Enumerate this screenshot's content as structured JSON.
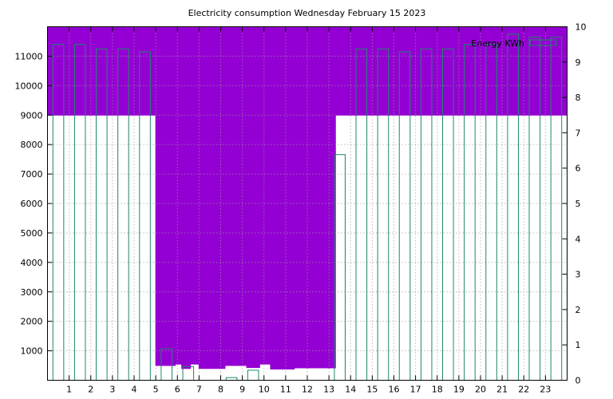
{
  "chart_data": {
    "type": "bar",
    "title": "Electricity consumption Wednesday February 15 2023",
    "xlabel": "",
    "ylabel": "",
    "xlim": [
      0,
      24
    ],
    "x_ticks": [
      1,
      2,
      3,
      4,
      5,
      6,
      7,
      8,
      9,
      10,
      11,
      12,
      13,
      14,
      15,
      16,
      17,
      18,
      19,
      20,
      21,
      22,
      23
    ],
    "y_left": {
      "lim": [
        0,
        12000
      ],
      "ticks": [
        1000,
        2000,
        3000,
        4000,
        5000,
        6000,
        7000,
        8000,
        9000,
        10000,
        11000
      ]
    },
    "y_right": {
      "lim": [
        0,
        10
      ],
      "ticks": [
        0,
        1,
        2,
        3,
        4,
        5,
        6,
        7,
        8,
        9,
        10
      ]
    },
    "grid": true,
    "legend_position": "top-right",
    "colors": {
      "bars": "#1a8a6a",
      "step_line": "#9400d3",
      "fill": "#9400d3"
    },
    "series": [
      {
        "name": "Energy KWh",
        "axis": "left",
        "style": "boxes",
        "hours": [
          0,
          1,
          2,
          3,
          4,
          5,
          6,
          7,
          8,
          9,
          10,
          11,
          12,
          13,
          14,
          15,
          16,
          17,
          18,
          19,
          20,
          21,
          22,
          23
        ],
        "values": [
          11400,
          11400,
          11250,
          11250,
          11150,
          1070,
          460,
          0,
          90,
          340,
          0,
          0,
          0,
          7660,
          11250,
          11250,
          11150,
          11250,
          11250,
          11400,
          11400,
          11750,
          11650,
          11650
        ]
      },
      {
        "axis": "left",
        "style": "step-fill",
        "steps": [
          [
            0,
            9000
          ],
          [
            5,
            9000
          ],
          [
            5,
            500
          ],
          [
            5.9,
            500
          ],
          [
            5.9,
            550
          ],
          [
            6.2,
            550
          ],
          [
            6.2,
            400
          ],
          [
            6.6,
            400
          ],
          [
            6.6,
            550
          ],
          [
            7,
            550
          ],
          [
            7,
            400
          ],
          [
            8.2,
            400
          ],
          [
            8.2,
            500
          ],
          [
            9.2,
            500
          ],
          [
            9.2,
            430
          ],
          [
            9.8,
            430
          ],
          [
            9.8,
            550
          ],
          [
            10.3,
            550
          ],
          [
            10.3,
            380
          ],
          [
            11.4,
            380
          ],
          [
            11.4,
            420
          ],
          [
            13.3,
            420
          ],
          [
            13.3,
            9000
          ],
          [
            24,
            9000
          ]
        ]
      }
    ]
  }
}
